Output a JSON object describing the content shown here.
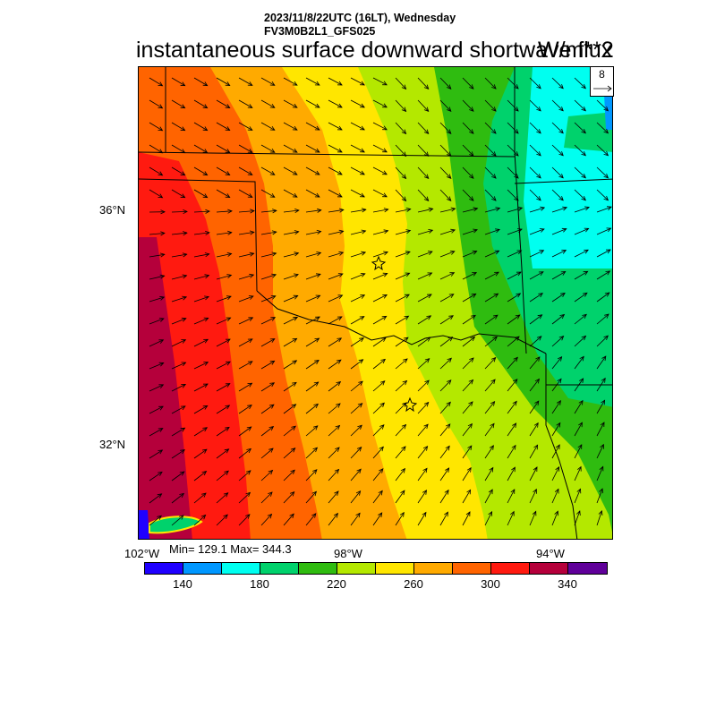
{
  "header": {
    "date_line": "2023/11/8/22UTC (16LT), Wednesday",
    "model_line": "FV3M0B2L1_GFS025",
    "title": "instantaneous surface downward shortwave flux",
    "units": "W/m**2"
  },
  "reference_vector": {
    "label": "8"
  },
  "axes": {
    "lat_labels": [
      "36°N",
      "32°N"
    ],
    "lon_labels": [
      "102°W",
      "98°W",
      "94°W"
    ]
  },
  "stats": {
    "minmax": "Min= 129.1 Max= 344.3"
  },
  "colorbar": {
    "colors": [
      "#1f00ff",
      "#0097ff",
      "#00fff0",
      "#00d26c",
      "#2fbc10",
      "#b4e800",
      "#ffe600",
      "#ffaa00",
      "#ff6400",
      "#ff1a10",
      "#b5003b",
      "#60009a"
    ],
    "labels": [
      "140",
      "180",
      "220",
      "260",
      "300",
      "340"
    ]
  },
  "map": {
    "features": [
      "shaded-contours",
      "wind-vectors",
      "state-borders",
      "station-markers"
    ]
  }
}
